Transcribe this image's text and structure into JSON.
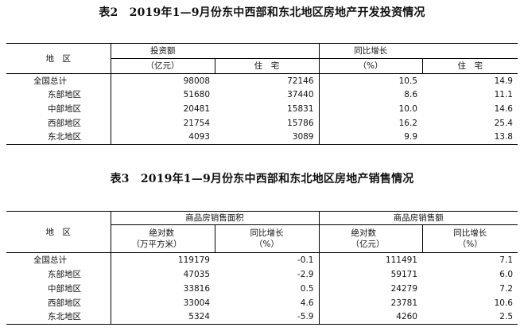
{
  "table2": {
    "title": "表2　2019年1—9月份东中西部和东北地区房地产开发投资情况",
    "headers": {
      "region": "地　区",
      "investment_line1": "投资额",
      "investment_line2": "（亿元）",
      "residential1": "住　宅",
      "yoy_line1": "同比增长",
      "yoy_line2": "（%）",
      "residential2": "住　宅"
    },
    "rows": [
      {
        "region": "全国总计",
        "investment": "98008",
        "residential": "72146",
        "yoy": "10.5",
        "yoy_residential": "14.9"
      },
      {
        "region": "东部地区",
        "investment": "51680",
        "residential": "37440",
        "yoy": "8.6",
        "yoy_residential": "11.1"
      },
      {
        "region": "中部地区",
        "investment": "20481",
        "residential": "15831",
        "yoy": "10.0",
        "yoy_residential": "14.6"
      },
      {
        "region": "西部地区",
        "investment": "21754",
        "residential": "15786",
        "yoy": "16.2",
        "yoy_residential": "25.4"
      },
      {
        "region": "东北地区",
        "investment": "4093",
        "residential": "3089",
        "yoy": "9.9",
        "yoy_residential": "13.8"
      }
    ]
  },
  "table3": {
    "title": "表3　2019年1—9月份东中西部和东北地区房地产销售情况",
    "headers": {
      "region": "地　区",
      "area_group": "商品房销售面积",
      "sales_group": "商品房销售额",
      "area_abs_line1": "绝对数",
      "area_abs_line2": "（万平方米）",
      "area_yoy_line1": "同比增长",
      "area_yoy_line2": "（%）",
      "sales_abs_line1": "绝对数",
      "sales_abs_line2": "（亿元）",
      "sales_yoy_line1": "同比增长",
      "sales_yoy_line2": "（%）"
    },
    "rows": [
      {
        "region": "全国总计",
        "area": "119179",
        "area_yoy": "-0.1",
        "sales": "111491",
        "sales_yoy": "7.1"
      },
      {
        "region": "东部地区",
        "area": "47035",
        "area_yoy": "-2.9",
        "sales": "59171",
        "sales_yoy": "6.0"
      },
      {
        "region": "中部地区",
        "area": "33816",
        "area_yoy": "0.5",
        "sales": "24279",
        "sales_yoy": "7.2"
      },
      {
        "region": "西部地区",
        "area": "33004",
        "area_yoy": "4.6",
        "sales": "23781",
        "sales_yoy": "10.6"
      },
      {
        "region": "东北地区",
        "area": "5324",
        "area_yoy": "-5.9",
        "sales": "4260",
        "sales_yoy": "2.5"
      }
    ]
  }
}
